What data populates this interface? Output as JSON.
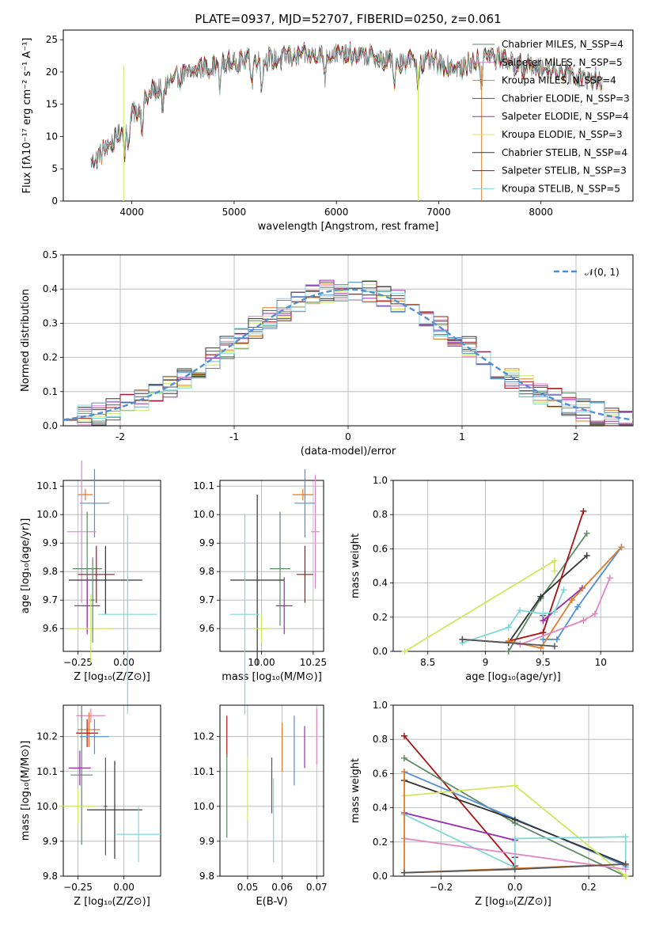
{
  "chart_data": [
    {
      "id": "spectrum",
      "type": "line",
      "title": "PLATE=0937, MJD=52707, FIBERID=0250, z=0.061",
      "xlabel": "wavelength [Angstrom, rest frame]",
      "ylabel": "Flux [fλ10⁻¹⁷ erg cm⁻² s⁻¹ A⁻¹]",
      "xlim": [
        3330,
        8900
      ],
      "ylim": [
        0,
        26.5
      ],
      "xticks": [
        4000,
        5000,
        6000,
        7000,
        8000
      ],
      "yticks": [
        0,
        5,
        10,
        15,
        20,
        25
      ],
      "grid": false,
      "legend_position": "top-right",
      "legend": [
        {
          "label": "Chabrier MILES, N_SSP=4",
          "color": "#5a8a63"
        },
        {
          "label": "Salpeter MILES, N_SSP=5",
          "color": "#e184c4"
        },
        {
          "label": "Kroupa MILES, N_SSP=4",
          "color": "#e07b28"
        },
        {
          "label": "Chabrier ELODIE, N_SSP=3",
          "color": "#555555"
        },
        {
          "label": "Salpeter ELODIE, N_SSP=4",
          "color": "#9a2aaf"
        },
        {
          "label": "Kroupa ELODIE, N_SSP=3",
          "color": "#cfe85a"
        },
        {
          "label": "Chabrier STELIB, N_SSP=4",
          "color": "#333333"
        },
        {
          "label": "Salpeter STELIB, N_SSP=3",
          "color": "#aa1111"
        },
        {
          "label": "Kroupa STELIB, N_SSP=5",
          "color": "#7fd8d8"
        }
      ],
      "continuum_anchor_points": {
        "x": [
          3600,
          3800,
          4000,
          4200,
          4500,
          4800,
          5000,
          5300,
          5600,
          5900,
          6200,
          6500,
          6800,
          7000,
          7200,
          7500,
          7800,
          8100,
          8400,
          8600
        ],
        "y": [
          6,
          9,
          13,
          17,
          19.5,
          21,
          21.5,
          22,
          22.3,
          23,
          22.6,
          22,
          21.5,
          21.5,
          20.5,
          22.5,
          21,
          20.5,
          19,
          18.5
        ]
      },
      "absorption_features_wavelengths": [
        3934,
        3968,
        4102,
        4300,
        4861,
        5175,
        5270,
        5890,
        6563,
        6800,
        7420
      ]
    },
    {
      "id": "residuals",
      "type": "histogram",
      "xlabel": "(data-model)/error",
      "ylabel": "Normed distribution",
      "xlim": [
        -2.5,
        2.5
      ],
      "ylim": [
        0,
        0.5
      ],
      "xticks": [
        -2,
        -1,
        0,
        1,
        2
      ],
      "yticks": [
        0.0,
        0.1,
        0.2,
        0.3,
        0.4,
        0.5
      ],
      "grid": true,
      "legend_position": "top-right",
      "reference_curve": {
        "label": "𝒩(0, 1)",
        "color": "#4f8fd8",
        "style": "dashed",
        "mu": 0,
        "sigma": 1
      },
      "bin_width": 0.125,
      "series_colors": [
        "#5a8a63",
        "#e184c4",
        "#e07b28",
        "#555555",
        "#9a2aaf",
        "#cfe85a",
        "#333333",
        "#aa1111",
        "#7fd8d8",
        "#4f8fd8"
      ]
    },
    {
      "id": "age-vs-Z",
      "type": "errorbar",
      "xlabel": "Z [log₁₀(Z/Z⊙)]",
      "ylabel": "age  [log₁₀(age/yr)]",
      "xlim": [
        -0.33,
        0.2
      ],
      "ylim": [
        9.52,
        10.12
      ],
      "xticks": [
        -0.25,
        0.0
      ],
      "xticklabels": [
        "−0.25",
        "0.00"
      ],
      "yticks": [
        9.6,
        9.7,
        9.8,
        9.9,
        10.0,
        10.1
      ],
      "grid": true,
      "points": [
        {
          "color": "#e07b28",
          "x": -0.21,
          "y": 10.07,
          "xerr": 0.04,
          "yerr": 0.02
        },
        {
          "color": "#4f8fd8",
          "x": -0.16,
          "y": 10.04,
          "xerr": 0.08,
          "yerr": 0.12
        },
        {
          "color": "#e184c4",
          "x": -0.23,
          "y": 9.94,
          "xerr": 0.08,
          "yerr": 0.25
        },
        {
          "color": "#5a8a63",
          "x": -0.2,
          "y": 9.81,
          "xerr": 0.08,
          "yerr": 0.2
        },
        {
          "color": "#aa1111",
          "x": -0.15,
          "y": 9.79,
          "xerr": 0.1,
          "yerr": 0.1
        },
        {
          "color": "#333333",
          "x": -0.1,
          "y": 9.77,
          "xerr": 0.2,
          "yerr": 0.12
        },
        {
          "color": "#9a2aaf",
          "x": -0.2,
          "y": 9.68,
          "xerr": 0.07,
          "yerr": 0.1
        },
        {
          "color": "#7fd8d8",
          "x": 0.02,
          "y": 9.65,
          "xerr": 0.16,
          "yerr": 0.35
        },
        {
          "color": "#cfe85a",
          "x": -0.18,
          "y": 9.6,
          "xerr": 0.12,
          "yerr": 0.12
        },
        {
          "color": "#5a8a63",
          "x": -0.17,
          "y": 9.7,
          "xerr": 0.01,
          "yerr": 0.15
        }
      ]
    },
    {
      "id": "age-vs-mass",
      "type": "errorbar",
      "xlabel": "mass [log₁₀(M/M⊙)]",
      "ylabel": "",
      "xlim": [
        9.8,
        10.3
      ],
      "ylim": [
        9.52,
        10.12
      ],
      "xticks": [
        10.0,
        10.25
      ],
      "xticklabels": [
        "10.00",
        "10.25"
      ],
      "yticks": [
        9.6,
        9.7,
        9.8,
        9.9,
        10.0,
        10.1
      ],
      "grid": true,
      "points": [
        {
          "color": "#e07b28",
          "x": 10.2,
          "y": 10.07,
          "xerr": 0.05,
          "yerr": 0.02
        },
        {
          "color": "#4f8fd8",
          "x": 10.21,
          "y": 10.04,
          "xerr": 0.05,
          "yerr": 0.12
        },
        {
          "color": "#e184c4",
          "x": 10.26,
          "y": 9.94,
          "xerr": 0.02,
          "yerr": 0.2
        },
        {
          "color": "#5a8a63",
          "x": 10.09,
          "y": 9.81,
          "xerr": 0.05,
          "yerr": 0.2
        },
        {
          "color": "#aa1111",
          "x": 10.21,
          "y": 9.79,
          "xerr": 0.04,
          "yerr": 0.1
        },
        {
          "color": "#333333",
          "x": 9.98,
          "y": 9.77,
          "xerr": 0.13,
          "yerr": 0.3
        },
        {
          "color": "#9a2aaf",
          "x": 10.11,
          "y": 9.68,
          "xerr": 0.04,
          "yerr": 0.1
        },
        {
          "color": "#7fd8d8",
          "x": 9.92,
          "y": 9.65,
          "xerr": 0.07,
          "yerr": 0.35
        },
        {
          "color": "#cfe85a",
          "x": 10.0,
          "y": 9.6,
          "xerr": 0.04,
          "yerr": 0.05
        }
      ]
    },
    {
      "id": "massweight-vs-age",
      "type": "line",
      "xlabel": "age  [log₁₀(age/yr)]",
      "ylabel": "mass weight",
      "xlim": [
        8.2,
        10.28
      ],
      "ylim": [
        0.0,
        1.0
      ],
      "xticks": [
        8.5,
        9.0,
        9.5,
        10.0
      ],
      "yticks": [
        0.0,
        0.2,
        0.4,
        0.6,
        0.8,
        1.0
      ],
      "grid": true,
      "series": [
        {
          "color": "#cfe85a",
          "x": [
            8.3,
            9.6,
            9.6
          ],
          "y": [
            0.0,
            0.53,
            0.47
          ]
        },
        {
          "color": "#5a8a63",
          "x": [
            9.2,
            9.48,
            9.88
          ],
          "y": [
            0.0,
            0.31,
            0.69
          ]
        },
        {
          "color": "#333333",
          "x": [
            8.8,
            9.2,
            9.48,
            9.88
          ],
          "y": [
            0.07,
            0.05,
            0.32,
            0.56
          ]
        },
        {
          "color": "#aa1111",
          "x": [
            9.2,
            9.5,
            9.85
          ],
          "y": [
            0.06,
            0.11,
            0.82
          ]
        },
        {
          "color": "#9a2aaf",
          "x": [
            9.5,
            9.5,
            9.84
          ],
          "y": [
            0.21,
            0.18,
            0.37
          ]
        },
        {
          "color": "#7fd8d8",
          "x": [
            8.8,
            9.2,
            9.3,
            9.5,
            9.6,
            9.68
          ],
          "y": [
            0.05,
            0.14,
            0.24,
            0.22,
            0.23,
            0.36
          ]
        },
        {
          "color": "#4f8fd8",
          "x": [
            9.5,
            9.62,
            9.8,
            10.18
          ],
          "y": [
            0.07,
            0.07,
            0.26,
            0.61
          ]
        },
        {
          "color": "#e07b28",
          "x": [
            9.2,
            9.48,
            9.75,
            10.18
          ],
          "y": [
            0.06,
            0.02,
            0.3,
            0.61
          ]
        },
        {
          "color": "#e184c4",
          "x": [
            9.3,
            9.85,
            9.95,
            10.08
          ],
          "y": [
            0.04,
            0.18,
            0.22,
            0.43
          ]
        },
        {
          "color": "#555555",
          "x": [
            8.8,
            9.6
          ],
          "y": [
            0.07,
            0.03
          ]
        }
      ]
    },
    {
      "id": "mass-vs-Z",
      "type": "errorbar",
      "xlabel": "Z [log₁₀(Z/Z⊙)]",
      "ylabel": "mass [log₁₀(M/M⊙)]",
      "xlim": [
        -0.33,
        0.2
      ],
      "ylim": [
        9.8,
        10.29
      ],
      "xticks": [
        -0.25,
        0.0
      ],
      "xticklabels": [
        "−0.25",
        "0.00"
      ],
      "yticks": [
        9.8,
        9.9,
        10.0,
        10.1,
        10.2
      ],
      "grid": true,
      "points": [
        {
          "color": "#e184c4",
          "x": -0.18,
          "y": 10.26,
          "xerr": 0.08,
          "yerr": 0.02
        },
        {
          "color": "#e07b28",
          "x": -0.19,
          "y": 10.22,
          "xerr": 0.06,
          "yerr": 0.05
        },
        {
          "color": "#aa1111",
          "x": -0.2,
          "y": 10.21,
          "xerr": 0.06,
          "yerr": 0.04
        },
        {
          "color": "#4f8fd8",
          "x": -0.16,
          "y": 10.2,
          "xerr": 0.08,
          "yerr": 0.05
        },
        {
          "color": "#9a2aaf",
          "x": -0.24,
          "y": 10.11,
          "xerr": 0.06,
          "yerr": 0.05
        },
        {
          "color": "#5a8a63",
          "x": -0.23,
          "y": 10.09,
          "xerr": 0.06,
          "yerr": 0.2
        },
        {
          "color": "#cfe85a",
          "x": -0.25,
          "y": 10.0,
          "xerr": 0.1,
          "yerr": 0.05
        },
        {
          "color": "#333333",
          "x": -0.05,
          "y": 9.99,
          "xerr": 0.15,
          "yerr": 0.14
        },
        {
          "color": "#7fd8d8",
          "x": 0.08,
          "y": 9.92,
          "xerr": 0.12,
          "yerr": 0.08
        },
        {
          "color": "#555555",
          "x": -0.1,
          "y": 10.0,
          "xerr": 0.01,
          "yerr": 0.14
        }
      ]
    },
    {
      "id": "mass-vs-EBV",
      "type": "errorbar",
      "xlabel": "E(B-V)",
      "ylabel": "",
      "xlim": [
        0.042,
        0.072
      ],
      "ylim": [
        9.8,
        10.29
      ],
      "xticks": [
        0.05,
        0.06,
        0.07
      ],
      "xticklabels": [
        "0.05",
        "0.06",
        "0.07"
      ],
      "yticks": [
        9.8,
        9.9,
        10.0,
        10.1,
        10.2
      ],
      "grid": true,
      "points": [
        {
          "color": "#aa1111",
          "x": 0.044,
          "y": 10.2,
          "xerr": 0.0,
          "yerr": 0.06
        },
        {
          "color": "#5a8a63",
          "x": 0.044,
          "y": 10.03,
          "xerr": 0.0,
          "yerr": 0.12
        },
        {
          "color": "#cfe85a",
          "x": 0.05,
          "y": 10.05,
          "xerr": 0.0,
          "yerr": 0.09
        },
        {
          "color": "#555555",
          "x": 0.057,
          "y": 10.06,
          "xerr": 0.0,
          "yerr": 0.08
        },
        {
          "color": "#7fd8d8",
          "x": 0.0575,
          "y": 9.96,
          "xerr": 0.0,
          "yerr": 0.12
        },
        {
          "color": "#e07b28",
          "x": 0.06,
          "y": 10.17,
          "xerr": 0.0,
          "yerr": 0.07
        },
        {
          "color": "#4f8fd8",
          "x": 0.0635,
          "y": 10.16,
          "xerr": 0.0,
          "yerr": 0.1
        },
        {
          "color": "#9a2aaf",
          "x": 0.0665,
          "y": 10.17,
          "xerr": 0.0,
          "yerr": 0.06
        },
        {
          "color": "#e184c4",
          "x": 0.07,
          "y": 10.2,
          "xerr": 0.0,
          "yerr": 0.08
        }
      ]
    },
    {
      "id": "massweight-vs-Z",
      "type": "line",
      "xlabel": "Z [log₁₀(Z/Z⊙)]",
      "ylabel": "mass weight",
      "xlim": [
        -0.33,
        0.32
      ],
      "ylim": [
        0.0,
        1.0
      ],
      "xticks": [
        -0.2,
        0.0,
        0.2
      ],
      "xticklabels": [
        "−0.2",
        "0.0",
        "0.2"
      ],
      "yticks": [
        0.0,
        0.2,
        0.4,
        0.6,
        0.8,
        1.0
      ],
      "grid": true,
      "series": [
        {
          "color": "#aa1111",
          "x": [
            -0.3,
            0.0,
            0.0
          ],
          "y": [
            0.82,
            0.06,
            0.11
          ]
        },
        {
          "color": "#5a8a63",
          "x": [
            -0.3,
            0.0,
            0.3
          ],
          "y": [
            0.69,
            0.31,
            0.0
          ]
        },
        {
          "color": "#4f8fd8",
          "x": [
            -0.3,
            0.3
          ],
          "y": [
            0.61,
            0.06
          ]
        },
        {
          "color": "#333333",
          "x": [
            -0.3,
            0.0,
            0.3
          ],
          "y": [
            0.56,
            0.33,
            0.07
          ]
        },
        {
          "color": "#cfe85a",
          "x": [
            -0.3,
            0.0,
            0.3
          ],
          "y": [
            0.47,
            0.53,
            0.0
          ]
        },
        {
          "color": "#9a2aaf",
          "x": [
            -0.3,
            0.0
          ],
          "y": [
            0.37,
            0.21
          ]
        },
        {
          "color": "#7fd8d8",
          "x": [
            -0.3,
            0.0,
            0.0,
            0.3,
            0.3
          ],
          "y": [
            0.36,
            0.05,
            0.22,
            0.23,
            0.05
          ]
        },
        {
          "color": "#e184c4",
          "x": [
            -0.3,
            0.3
          ],
          "y": [
            0.22,
            0.04
          ]
        },
        {
          "color": "#e07b28",
          "x": [
            -0.3,
            -0.3,
            0.3
          ],
          "y": [
            0.61,
            0.02,
            0.07
          ]
        },
        {
          "color": "#555555",
          "x": [
            -0.3,
            0.0,
            0.3
          ],
          "y": [
            0.02,
            0.04,
            0.07
          ]
        }
      ]
    }
  ]
}
